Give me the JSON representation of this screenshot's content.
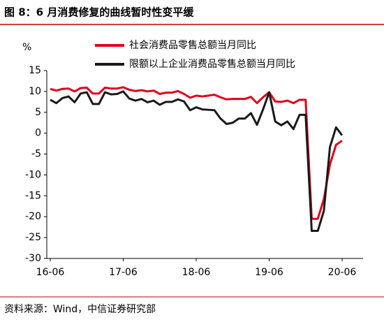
{
  "chart_data": {
    "type": "line",
    "title": "图 8：6 月消费修复的曲线暂时性变平缓",
    "y_label": "%",
    "source": "资料来源：Wind，中信证券研究部",
    "categories": [
      "16-06",
      null,
      null,
      null,
      null,
      null,
      null,
      null,
      null,
      null,
      null,
      null,
      "17-06",
      null,
      null,
      null,
      null,
      null,
      null,
      null,
      null,
      null,
      null,
      null,
      "18-06",
      null,
      null,
      null,
      null,
      null,
      null,
      null,
      null,
      null,
      null,
      null,
      "19-06",
      null,
      null,
      null,
      null,
      null,
      null,
      null,
      null,
      null,
      null,
      null,
      "20-06"
    ],
    "series": [
      {
        "name": "社会消费品零售总额当月同比",
        "color": "#e0001b",
        "values": [
          10.6,
          10.2,
          10.6,
          10.7,
          10.0,
          10.8,
          10.9,
          9.5,
          9.5,
          10.9,
          10.7,
          10.7,
          11.0,
          10.4,
          10.1,
          10.3,
          10.0,
          10.2,
          9.4,
          9.7,
          9.7,
          10.1,
          9.4,
          8.5,
          9.0,
          8.8,
          9.0,
          9.2,
          8.6,
          8.1,
          8.2,
          8.2,
          8.2,
          8.7,
          7.2,
          8.6,
          9.8,
          7.6,
          7.5,
          7.8,
          7.2,
          8.0,
          8.0,
          -20.5,
          -20.5,
          -15.8,
          -7.5,
          -2.8,
          -1.8
        ]
      },
      {
        "name": "限额以上企业消费品零售总额当月同比",
        "color": "#1a1a1a",
        "values": [
          8.0,
          7.2,
          8.4,
          8.8,
          7.4,
          9.5,
          9.8,
          7.0,
          7.0,
          9.8,
          9.3,
          9.4,
          10.0,
          8.3,
          7.8,
          8.2,
          7.4,
          7.8,
          6.8,
          7.5,
          7.5,
          8.1,
          7.6,
          5.5,
          6.2,
          5.7,
          5.6,
          5.5,
          3.5,
          2.2,
          2.5,
          3.5,
          3.5,
          4.8,
          2.0,
          5.7,
          9.8,
          2.8,
          1.9,
          2.8,
          1.0,
          4.4,
          4.4,
          -23.4,
          -23.4,
          -18.6,
          -3.3,
          1.4,
          -0.5
        ]
      }
    ],
    "ylim": [
      -30,
      15
    ],
    "yticks": [
      -30,
      -25,
      -20,
      -15,
      -10,
      -5,
      0,
      5,
      10,
      15
    ],
    "grid": false
  }
}
